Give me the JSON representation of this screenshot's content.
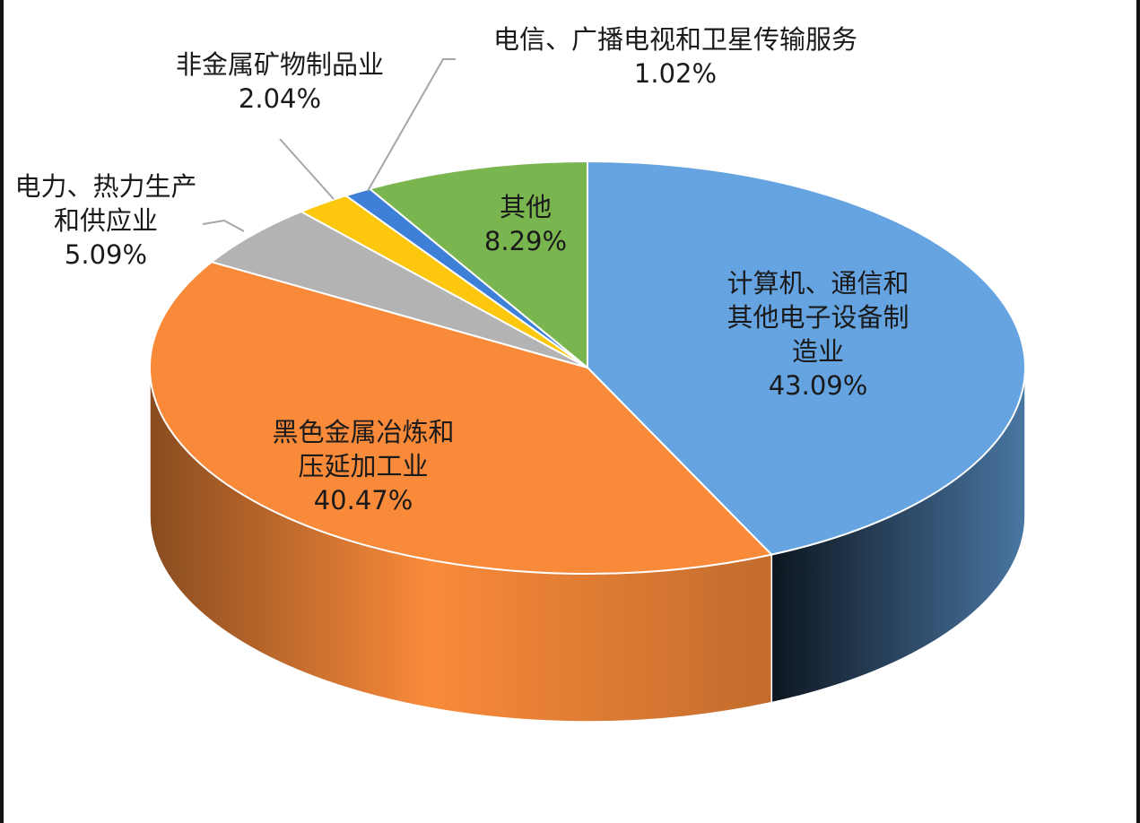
{
  "chart_data": {
    "type": "pie",
    "style": "3d",
    "title": "",
    "slices": [
      {
        "name": "计算机、通信和其他电子设备制造业",
        "label_lines": [
          "计算机、通信和",
          "其他电子设备制",
          "造业"
        ],
        "value": 43.09,
        "value_label": "43.09%",
        "color": "#65A4E1"
      },
      {
        "name": "黑色金属冶炼和压延加工业",
        "label_lines": [
          "黑色金属冶炼和",
          "压延加工业"
        ],
        "value": 40.47,
        "value_label": "40.47%",
        "color": "#F98A3A"
      },
      {
        "name": "电力、热力生产和供应业",
        "label_lines": [
          "电力、热力生产",
          "和供应业"
        ],
        "value": 5.09,
        "value_label": "5.09%",
        "color": "#B3B3B3"
      },
      {
        "name": "非金属矿物制品业",
        "label_lines": [
          "非金属矿物制品业"
        ],
        "value": 2.04,
        "value_label": "2.04%",
        "color": "#FDC70D"
      },
      {
        "name": "电信、广播电视和卫星传输服务",
        "label_lines": [
          "电信、广播电视和卫星传输服务"
        ],
        "value": 1.02,
        "value_label": "1.02%",
        "color": "#3E7FD8"
      },
      {
        "name": "其他",
        "label_lines": [
          "其他"
        ],
        "value": 8.29,
        "value_label": "8.29%",
        "color": "#7AB650"
      }
    ],
    "legend": "none"
  }
}
